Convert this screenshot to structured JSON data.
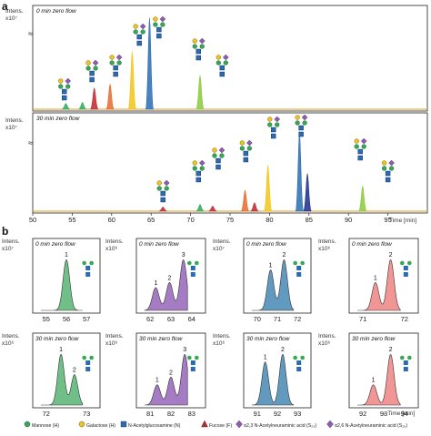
{
  "panel_a": {
    "letter": "a",
    "y_label_1": "Intens.",
    "y_label_2": "x10⁷",
    "time_label": "Time [min]",
    "top_trace_title": "0 min zero flow",
    "bottom_trace_title": "30 min zero flow",
    "x_ticks": [
      50,
      55,
      60,
      65,
      70,
      75,
      80,
      85,
      90,
      95
    ]
  },
  "panel_b": {
    "letter": "b",
    "y_label_1": "Intens.",
    "y_label_x107": "x10⁷",
    "y_label_x106": "x10⁶",
    "time_label": "Time [min]"
  },
  "chart_data": [
    {
      "type": "line",
      "title": "0 min zero flow",
      "xlim": [
        50,
        100
      ],
      "x_ticks": [
        50,
        55,
        60,
        65,
        70,
        75,
        80,
        85,
        90,
        95
      ],
      "peaks": [
        {
          "rt": 54.2,
          "height": 0.06,
          "color": "#34a853"
        },
        {
          "rt": 56.3,
          "height": 0.07,
          "color": "#34a853"
        },
        {
          "rt": 57.8,
          "height": 0.22,
          "color": "#c0252d"
        },
        {
          "rt": 59.8,
          "height": 0.26,
          "color": "#e56a2b"
        },
        {
          "rt": 62.6,
          "height": 0.6,
          "color": "#f2c418"
        },
        {
          "rt": 64.8,
          "height": 0.95,
          "color": "#2a6cb3"
        },
        {
          "rt": 71.2,
          "height": 0.35,
          "color": "#8bc93a"
        }
      ]
    },
    {
      "type": "line",
      "title": "30 min zero flow",
      "xlim": [
        50,
        100
      ],
      "x_ticks": [
        50,
        55,
        60,
        65,
        70,
        75,
        80,
        85,
        90,
        95
      ],
      "peaks": [
        {
          "rt": 66.5,
          "height": 0.05,
          "color": "#c0252d"
        },
        {
          "rt": 71.2,
          "height": 0.08,
          "color": "#34a853"
        },
        {
          "rt": 72.8,
          "height": 0.06,
          "color": "#c0252d"
        },
        {
          "rt": 76.9,
          "height": 0.25,
          "color": "#e56a2b"
        },
        {
          "rt": 78.1,
          "height": 0.1,
          "color": "#c0252d"
        },
        {
          "rt": 79.8,
          "height": 0.55,
          "color": "#f2c418"
        },
        {
          "rt": 83.8,
          "height": 0.95,
          "color": "#2a6cb3"
        },
        {
          "rt": 84.8,
          "height": 0.45,
          "color": "#1a2e8a"
        },
        {
          "rt": 91.8,
          "height": 0.3,
          "color": "#8bc93a"
        }
      ]
    },
    {
      "type": "area",
      "title": "0 min zero flow",
      "ylabel_scale": "x10⁷",
      "x_ticks": [
        55,
        56,
        57
      ],
      "color": "#4caf6a",
      "peak_labels": [
        "1"
      ]
    },
    {
      "type": "area",
      "title": "0 min zero flow",
      "ylabel_scale": "x10⁶",
      "x_ticks": [
        62,
        63,
        64
      ],
      "color": "#8e5bb5",
      "peak_labels": [
        "1",
        "2",
        "3"
      ]
    },
    {
      "type": "area",
      "title": "0 min zero flow",
      "ylabel_scale": "x10⁷",
      "x_ticks": [
        70,
        71,
        72
      ],
      "color": "#3b7fae",
      "peak_labels": [
        "1",
        "2"
      ]
    },
    {
      "type": "area",
      "title": "0 min zero flow",
      "ylabel_scale": "x10⁶",
      "x_ticks": [
        71,
        72
      ],
      "color": "#ef7a7a",
      "peak_labels": [
        "1",
        "2"
      ]
    },
    {
      "type": "area",
      "title": "30 min zero flow",
      "ylabel_scale": "x10⁶",
      "x_ticks": [
        72,
        73
      ],
      "color": "#4caf6a",
      "peak_labels": [
        "1",
        "2"
      ]
    },
    {
      "type": "area",
      "title": "30 min zero flow",
      "ylabel_scale": "x10⁶",
      "x_ticks": [
        81,
        82,
        83
      ],
      "color": "#8e5bb5",
      "peak_labels": [
        "1",
        "2",
        "3"
      ]
    },
    {
      "type": "area",
      "title": "30 min zero flow",
      "ylabel_scale": "x10⁶",
      "x_ticks": [
        91,
        92,
        93
      ],
      "color": "#3b7fae",
      "peak_labels": [
        "1",
        "2"
      ]
    },
    {
      "type": "area",
      "title": "30 min zero flow",
      "ylabel_scale": "x10⁶",
      "x_ticks": [
        92,
        93,
        94
      ],
      "color": "#ef7a7a",
      "peak_labels": [
        "1",
        "2"
      ]
    }
  ],
  "legend": [
    {
      "label": "Mannose (H)",
      "color": "#34a853",
      "shape": "circle"
    },
    {
      "label": "Galactose (H)",
      "color": "#f2c418",
      "shape": "circle"
    },
    {
      "label": "N-Acetylglucosamine (N)",
      "color": "#2a6cb3",
      "shape": "square"
    },
    {
      "label": "Fucose (F)",
      "color": "#c0252d",
      "shape": "triangle"
    },
    {
      "label": "α2,3 N-Acetylneuraminic acid (S₂₃)",
      "color": "#8e5bb5",
      "shape": "diamond"
    },
    {
      "label": "α2,6 N-Acetylneuraminic acid (S₂₆)",
      "color": "#8e5bb5",
      "shape": "diamond"
    }
  ]
}
